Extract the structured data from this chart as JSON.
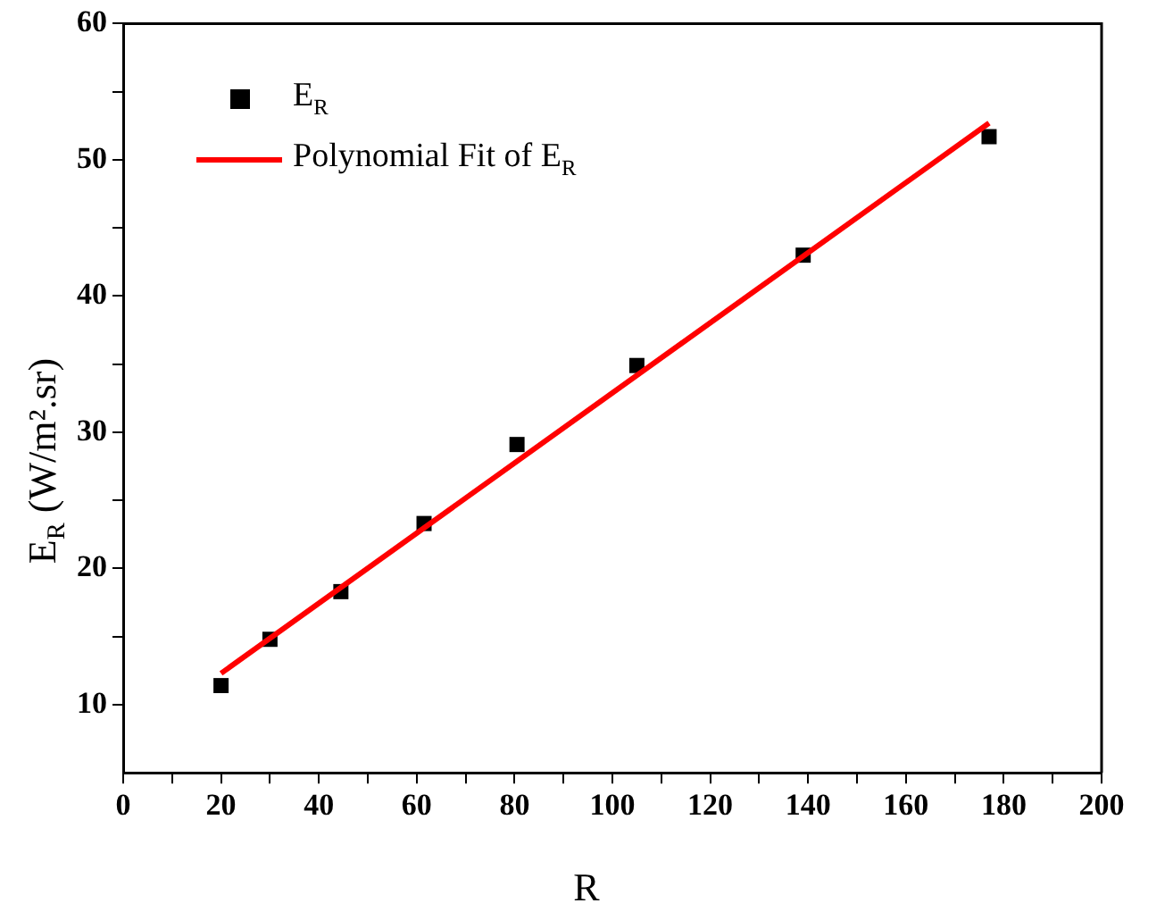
{
  "chart_data": {
    "type": "scatter",
    "xlabel": "R",
    "ylabel": "E$_{R}$ (W/m².sr)",
    "xlim": [
      0,
      200
    ],
    "ylim": [
      5,
      60
    ],
    "xticks": [
      0,
      {
        "value": 10,
        "label": null
      },
      20,
      {
        "value": 30,
        "label": null
      },
      40,
      {
        "value": 50,
        "label": null
      },
      60,
      {
        "value": 70,
        "label": null
      },
      80,
      {
        "value": 90,
        "label": null
      },
      100,
      {
        "value": 110,
        "label": null
      },
      120,
      {
        "value": 130,
        "label": null
      },
      140,
      {
        "value": 150,
        "label": null
      },
      160,
      {
        "value": 170,
        "label": null
      },
      180,
      {
        "value": 190,
        "label": null
      },
      200
    ],
    "yticks": [
      10,
      {
        "value": 15,
        "label": null
      },
      20,
      {
        "value": 25,
        "label": null
      },
      30,
      {
        "value": 35,
        "label": null
      },
      40,
      {
        "value": 45,
        "label": null
      },
      50,
      {
        "value": 55,
        "label": null
      },
      60
    ],
    "grid": false,
    "legend": "top left",
    "series": [
      {
        "name": "E$_{R}$",
        "marker": "square",
        "color": "#000000",
        "x": [
          20,
          30,
          44.5,
          61.5,
          80.5,
          105,
          139,
          177
        ],
        "values": [
          11.4,
          14.8,
          18.3,
          23.3,
          29.1,
          34.9,
          43.0,
          51.7
        ]
      },
      {
        "name": "Polynomial Fit of E$_{R}$",
        "type": "line",
        "color": "#ff0000",
        "line_style": "solid",
        "marker": "none",
        "x": [
          20,
          177
        ],
        "values": [
          12.3,
          52.7
        ]
      }
    ]
  }
}
